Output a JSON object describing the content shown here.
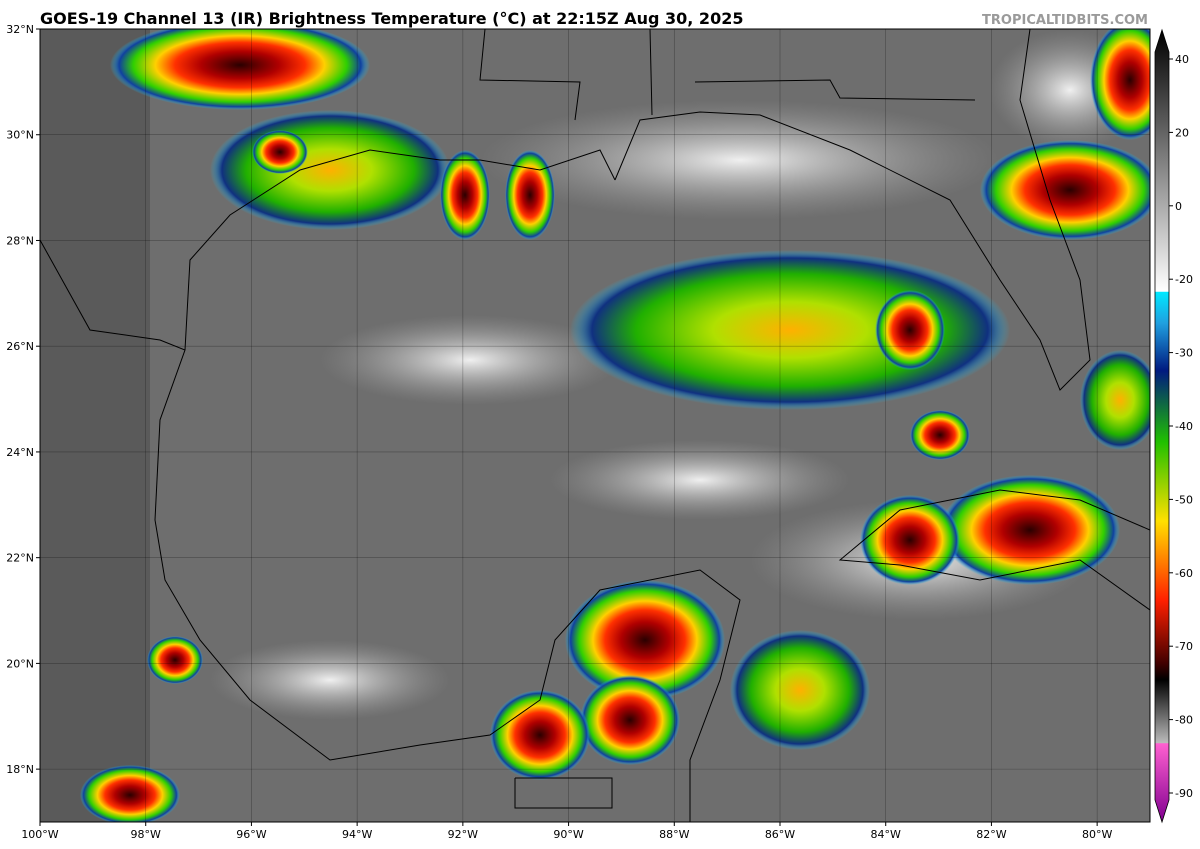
{
  "header": {
    "title": "GOES-19 Channel 13 (IR) Brightness Temperature (°C) at 22:15Z Aug 30, 2025",
    "watermark": "TROPICALTIDBITS.COM"
  },
  "map": {
    "xlim": [
      -100,
      -79
    ],
    "ylim": [
      17,
      32
    ],
    "xticks": [
      {
        "value": -100,
        "label": "100°W"
      },
      {
        "value": -98,
        "label": "98°W"
      },
      {
        "value": -96,
        "label": "96°W"
      },
      {
        "value": -94,
        "label": "94°W"
      },
      {
        "value": -92,
        "label": "92°W"
      },
      {
        "value": -90,
        "label": "90°W"
      },
      {
        "value": -88,
        "label": "88°W"
      },
      {
        "value": -86,
        "label": "86°W"
      },
      {
        "value": -84,
        "label": "84°W"
      },
      {
        "value": -82,
        "label": "82°W"
      },
      {
        "value": -80,
        "label": "80°W"
      }
    ],
    "yticks": [
      {
        "value": 18,
        "label": "18°N"
      },
      {
        "value": 20,
        "label": "20°N"
      },
      {
        "value": 22,
        "label": "22°N"
      },
      {
        "value": 24,
        "label": "24°N"
      },
      {
        "value": 26,
        "label": "26°N"
      },
      {
        "value": 28,
        "label": "28°N"
      },
      {
        "value": 30,
        "label": "30°N"
      },
      {
        "value": 32,
        "label": "32°N"
      }
    ]
  },
  "colorbar": {
    "ticks": [
      40,
      20,
      0,
      -20,
      -30,
      -40,
      -50,
      -60,
      -70,
      -80,
      -90
    ]
  }
}
